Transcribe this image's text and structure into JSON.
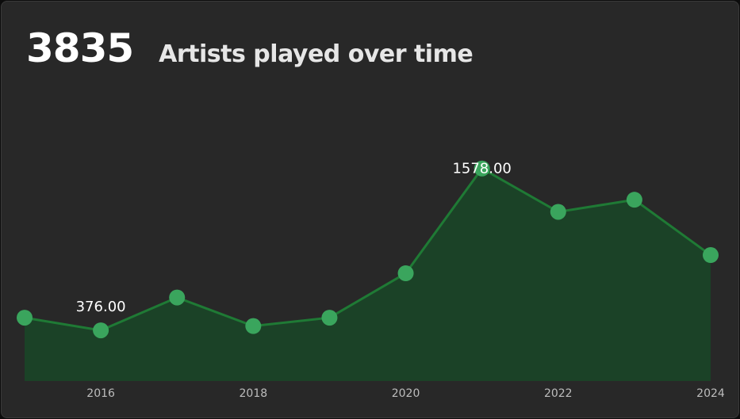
{
  "header": {
    "total": "3835",
    "title": "Artists played over time"
  },
  "colors": {
    "background": "#282828",
    "line": "#1f7a35",
    "area": "#1b4227",
    "point": "#3aa55d",
    "label": "#ffffff",
    "tick": "#bdbdbd"
  },
  "chart_data": {
    "type": "area",
    "x": [
      2015,
      2016,
      2017,
      2018,
      2019,
      2020,
      2021,
      2022,
      2023,
      2024
    ],
    "series": [
      {
        "values": [
          470,
          376,
          620,
          408,
          470,
          800,
          1578,
          1256,
          1346,
          935
        ]
      }
    ],
    "xticks": [
      "2016",
      "2018",
      "2020",
      "2022",
      "2024"
    ],
    "data_labels": [
      {
        "x": 2016,
        "text": "376.00"
      },
      {
        "x": 2021,
        "text": "1578.00"
      }
    ],
    "ylim": [
      0,
      1700
    ],
    "grid": false,
    "legend": false
  }
}
